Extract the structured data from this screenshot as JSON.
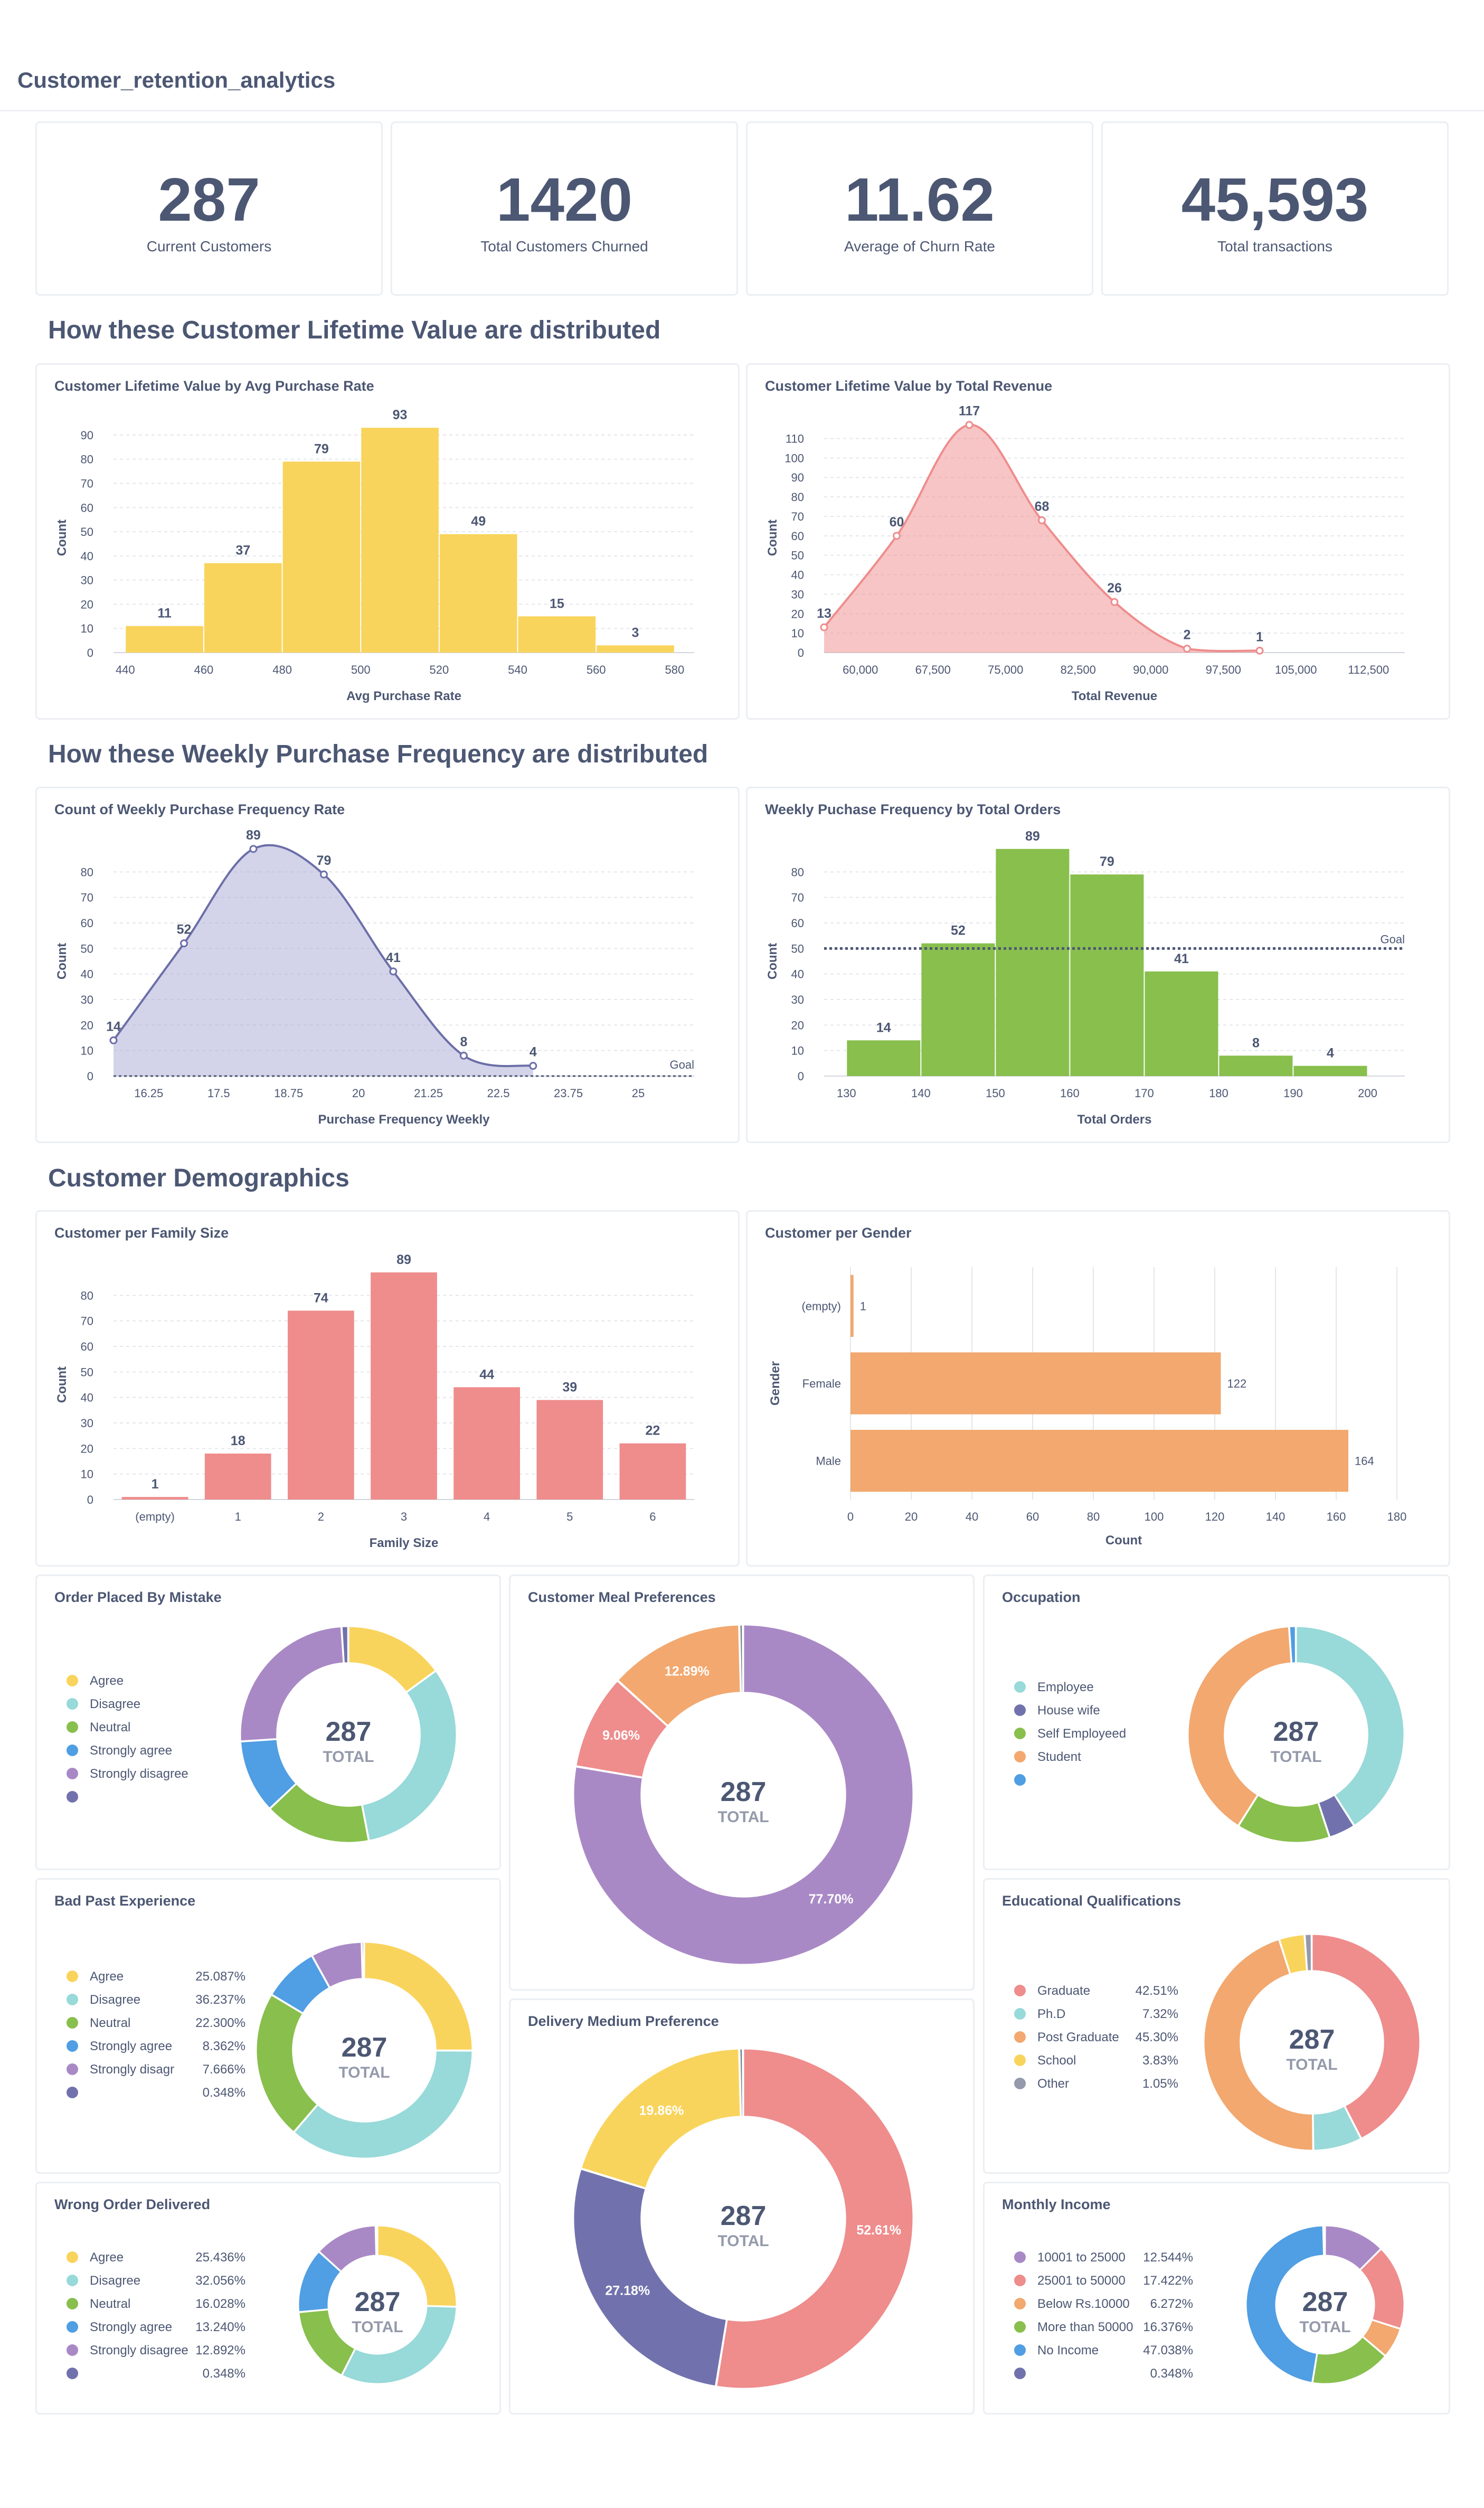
{
  "app": {
    "title": "Customer_retention_analytics"
  },
  "kpis": [
    {
      "value": "287",
      "label": "Current Customers"
    },
    {
      "value": "1420",
      "label": "Total Customers Churned"
    },
    {
      "value": "11.62",
      "label": "Average of Churn Rate"
    },
    {
      "value": "45,593",
      "label": "Total transactions"
    }
  ],
  "sections": {
    "clv": "How these Customer Lifetime Value are distributed",
    "wpf": "How these Weekly Purchase Frequency are distributed",
    "demo": "Customer Demographics"
  },
  "colors": {
    "yellow": "#f9d45c",
    "pink": "#ef8c8c",
    "lilac": "#a989c5",
    "green": "#88bf4d",
    "orange": "#f2a86f",
    "teal": "#98d9d9",
    "blue": "#509ee3",
    "purple": "#7172ad",
    "slate": "#74838f"
  },
  "chart_data": [
    {
      "id": "clv_avg",
      "type": "bar",
      "title": "Customer Lifetime Value by Avg Purchase Rate",
      "xlabel": "Avg Purchase Rate",
      "ylabel": "Count",
      "x_ticks": [
        "440",
        "460",
        "480",
        "500",
        "520",
        "540",
        "560",
        "580"
      ],
      "y_ticks": [
        "0",
        "10",
        "20",
        "30",
        "40",
        "50",
        "60",
        "70",
        "80",
        "90"
      ],
      "bins": [
        [
          440,
          460
        ],
        [
          460,
          480
        ],
        [
          480,
          500
        ],
        [
          500,
          520
        ],
        [
          520,
          540
        ],
        [
          540,
          560
        ],
        [
          560,
          580
        ]
      ],
      "values": [
        11,
        37,
        79,
        93,
        49,
        15,
        3
      ],
      "ylim": [
        0,
        95
      ],
      "xlim": [
        437,
        585
      ],
      "color": "#f9d45c"
    },
    {
      "id": "clv_rev",
      "type": "area",
      "title": "Customer Lifetime Value by Total Revenue",
      "xlabel": "Total Revenue",
      "ylabel": "Count",
      "x_ticks": [
        "60,000",
        "67,500",
        "75,000",
        "82,500",
        "90,000",
        "97,500",
        "105,000",
        "112,500"
      ],
      "x_tick_values": [
        60000,
        67500,
        75000,
        82500,
        90000,
        97500,
        105000,
        112500
      ],
      "y_ticks": [
        "0",
        "10",
        "20",
        "30",
        "40",
        "50",
        "60",
        "70",
        "80",
        "90",
        "100",
        "110"
      ],
      "x": [
        56250,
        63750,
        71250,
        78750,
        86250,
        93750,
        101250
      ],
      "values": [
        13,
        60,
        117,
        68,
        26,
        2,
        1
      ],
      "ylim": [
        0,
        118
      ],
      "xlim": [
        56250,
        116250
      ],
      "color": "#ef8c8c"
    },
    {
      "id": "wpf_count",
      "type": "area",
      "title": "Count of Weekly Purchase Frequency Rate",
      "xlabel": "Purchase Frequency Weekly",
      "ylabel": "Count",
      "x_ticks": [
        "16.25",
        "17.5",
        "18.75",
        "20",
        "21.25",
        "22.5",
        "23.75",
        "25"
      ],
      "x_tick_values": [
        16.25,
        17.5,
        18.75,
        20,
        21.25,
        22.5,
        23.75,
        25
      ],
      "y_ticks": [
        "0",
        "10",
        "20",
        "30",
        "40",
        "50",
        "60",
        "70",
        "80"
      ],
      "x": [
        15.62,
        16.88,
        18.12,
        19.38,
        20.62,
        21.88,
        23.12
      ],
      "values": [
        14,
        52,
        89,
        79,
        41,
        8,
        4
      ],
      "ylim": [
        0,
        90
      ],
      "xlim": [
        15.62,
        26.0
      ],
      "color": "#a7a9d3",
      "goal": 0,
      "goal_label": "Goal"
    },
    {
      "id": "wpf_orders",
      "type": "bar",
      "title": "Weekly Puchase Frequency by Total Orders",
      "xlabel": "Total Orders",
      "ylabel": "Count",
      "x_ticks": [
        "130",
        "140",
        "150",
        "160",
        "170",
        "180",
        "190",
        "200"
      ],
      "y_ticks": [
        "0",
        "10",
        "20",
        "30",
        "40",
        "50",
        "60",
        "70",
        "80"
      ],
      "bins": [
        [
          130,
          140
        ],
        [
          140,
          150
        ],
        [
          150,
          160
        ],
        [
          160,
          170
        ],
        [
          170,
          180
        ],
        [
          180,
          190
        ],
        [
          190,
          200
        ]
      ],
      "values": [
        14,
        52,
        89,
        79,
        41,
        8,
        4
      ],
      "ylim": [
        0,
        90
      ],
      "xlim": [
        127,
        205
      ],
      "color": "#88bf4d",
      "goal": 50,
      "goal_label": "Goal"
    },
    {
      "id": "family",
      "type": "bar",
      "title": "Customer per Family Size",
      "xlabel": "Family Size",
      "ylabel": "Count",
      "categories": [
        "(empty)",
        "1",
        "2",
        "3",
        "4",
        "5",
        "6"
      ],
      "y_ticks": [
        "0",
        "10",
        "20",
        "30",
        "40",
        "50",
        "60",
        "70",
        "80"
      ],
      "values": [
        1,
        18,
        74,
        89,
        44,
        39,
        22
      ],
      "ylim": [
        0,
        90
      ],
      "color": "#ef8c8c"
    },
    {
      "id": "gender",
      "type": "bar",
      "title": "Customer per Gender",
      "xlabel": "Count",
      "ylabel": "Gender",
      "categories": [
        "(empty)",
        "Female",
        "Male"
      ],
      "x_ticks": [
        "0",
        "20",
        "40",
        "60",
        "80",
        "100",
        "120",
        "140",
        "160",
        "180"
      ],
      "values": [
        1,
        122,
        164
      ],
      "xlim": [
        0,
        180
      ],
      "color": "#f2a86f"
    }
  ],
  "donuts": [
    {
      "id": "mistake",
      "title": "Order Placed By Mistake",
      "total": "287",
      "total_label": "TOTAL",
      "items": [
        {
          "label": "Agree",
          "pct": 15.0,
          "color": "#f9d45c"
        },
        {
          "label": "Disagree",
          "pct": 32.0,
          "color": "#98d9d9"
        },
        {
          "label": "Neutral",
          "pct": 16.0,
          "color": "#88bf4d"
        },
        {
          "label": "Strongly agree",
          "pct": 11.0,
          "color": "#509ee3"
        },
        {
          "label": "Strongly disagree",
          "pct": 25.0,
          "color": "#a989c5"
        },
        {
          "label": "",
          "pct": 1.0,
          "color": "#7172ad"
        }
      ]
    },
    {
      "id": "meal",
      "title": "Customer Meal Preferences",
      "total": "287",
      "total_label": "TOTAL",
      "items": [
        {
          "label": "",
          "pct": 77.7,
          "color": "#a989c5",
          "text": "77.70%"
        },
        {
          "label": "",
          "pct": 9.06,
          "color": "#ef8c8c",
          "text": "9.06%"
        },
        {
          "label": "",
          "pct": 12.89,
          "color": "#f2a86f",
          "text": "12.89%"
        },
        {
          "label": "",
          "pct": 0.35,
          "color": "#74838f"
        }
      ]
    },
    {
      "id": "occupation",
      "title": "Occupation",
      "total": "287",
      "total_label": "TOTAL",
      "items": [
        {
          "label": "Employee",
          "pct": 41.0,
          "color": "#98d9d9"
        },
        {
          "label": "House wife",
          "pct": 4.0,
          "color": "#7172ad"
        },
        {
          "label": "Self Employeed",
          "pct": 14.0,
          "color": "#88bf4d"
        },
        {
          "label": "Student",
          "pct": 40.0,
          "color": "#f2a86f"
        },
        {
          "label": "",
          "pct": 1.0,
          "color": "#509ee3"
        }
      ]
    },
    {
      "id": "bad",
      "title": "Bad Past Experience",
      "total": "287",
      "total_label": "TOTAL",
      "items": [
        {
          "label": "Agree",
          "pct": 25.087,
          "color": "#f9d45c",
          "value": "25.087%"
        },
        {
          "label": "Disagree",
          "pct": 36.237,
          "color": "#98d9d9",
          "value": "36.237%"
        },
        {
          "label": "Neutral",
          "pct": 22.3,
          "color": "#88bf4d",
          "value": "22.300%"
        },
        {
          "label": "Strongly agree",
          "pct": 8.362,
          "color": "#509ee3",
          "value": "8.362%"
        },
        {
          "label": "Strongly disagr",
          "pct": 7.666,
          "color": "#a989c5",
          "value": "7.666%"
        },
        {
          "label": "",
          "pct": 0.348,
          "color": "#7172ad",
          "value": "0.348%"
        }
      ]
    },
    {
      "id": "delivery",
      "title": "Delivery Medium Preference",
      "total": "287",
      "total_label": "TOTAL",
      "items": [
        {
          "label": "",
          "pct": 52.61,
          "color": "#ef8c8c",
          "text": "52.61%"
        },
        {
          "label": "",
          "pct": 27.18,
          "color": "#7172ad",
          "text": "27.18%"
        },
        {
          "label": "",
          "pct": 19.86,
          "color": "#f9d45c",
          "text": "19.86%"
        },
        {
          "label": "",
          "pct": 0.35,
          "color": "#74838f"
        }
      ]
    },
    {
      "id": "edu",
      "title": "Educational Qualifications",
      "total": "287",
      "total_label": "TOTAL",
      "items": [
        {
          "label": "Graduate",
          "pct": 42.51,
          "color": "#ef8c8c",
          "value": "42.51%"
        },
        {
          "label": "Ph.D",
          "pct": 7.32,
          "color": "#98d9d9",
          "value": "7.32%"
        },
        {
          "label": "Post Graduate",
          "pct": 45.3,
          "color": "#f2a86f",
          "value": "45.30%"
        },
        {
          "label": "School",
          "pct": 3.83,
          "color": "#f9d45c",
          "value": "3.83%"
        },
        {
          "label": "Other",
          "pct": 1.05,
          "color": "#949aab",
          "value": "1.05%"
        }
      ]
    },
    {
      "id": "wrong",
      "title": "Wrong Order Delivered",
      "total": "287",
      "total_label": "TOTAL",
      "items": [
        {
          "label": "Agree",
          "pct": 25.436,
          "color": "#f9d45c",
          "value": "25.436%"
        },
        {
          "label": "Disagree",
          "pct": 32.056,
          "color": "#98d9d9",
          "value": "32.056%"
        },
        {
          "label": "Neutral",
          "pct": 16.028,
          "color": "#88bf4d",
          "value": "16.028%"
        },
        {
          "label": "Strongly agree",
          "pct": 13.24,
          "color": "#509ee3",
          "value": "13.240%"
        },
        {
          "label": "Strongly disagree",
          "pct": 12.892,
          "color": "#a989c5",
          "value": "12.892%"
        },
        {
          "label": "",
          "pct": 0.348,
          "color": "#7172ad",
          "value": "0.348%"
        }
      ]
    },
    {
      "id": "income",
      "title": "Monthly Income",
      "total": "287",
      "total_label": "TOTAL",
      "items": [
        {
          "label": "10001 to 25000",
          "pct": 12.544,
          "color": "#a989c5",
          "value": "12.544%"
        },
        {
          "label": "25001 to 50000",
          "pct": 17.422,
          "color": "#ef8c8c",
          "value": "17.422%"
        },
        {
          "label": "Below Rs.10000",
          "pct": 6.272,
          "color": "#f2a86f",
          "value": "6.272%"
        },
        {
          "label": "More than 50000",
          "pct": 16.376,
          "color": "#88bf4d",
          "value": "16.376%"
        },
        {
          "label": "No Income",
          "pct": 47.038,
          "color": "#509ee3",
          "value": "47.038%"
        },
        {
          "label": "",
          "pct": 0.348,
          "color": "#7172ad",
          "value": "0.348%"
        }
      ]
    }
  ]
}
